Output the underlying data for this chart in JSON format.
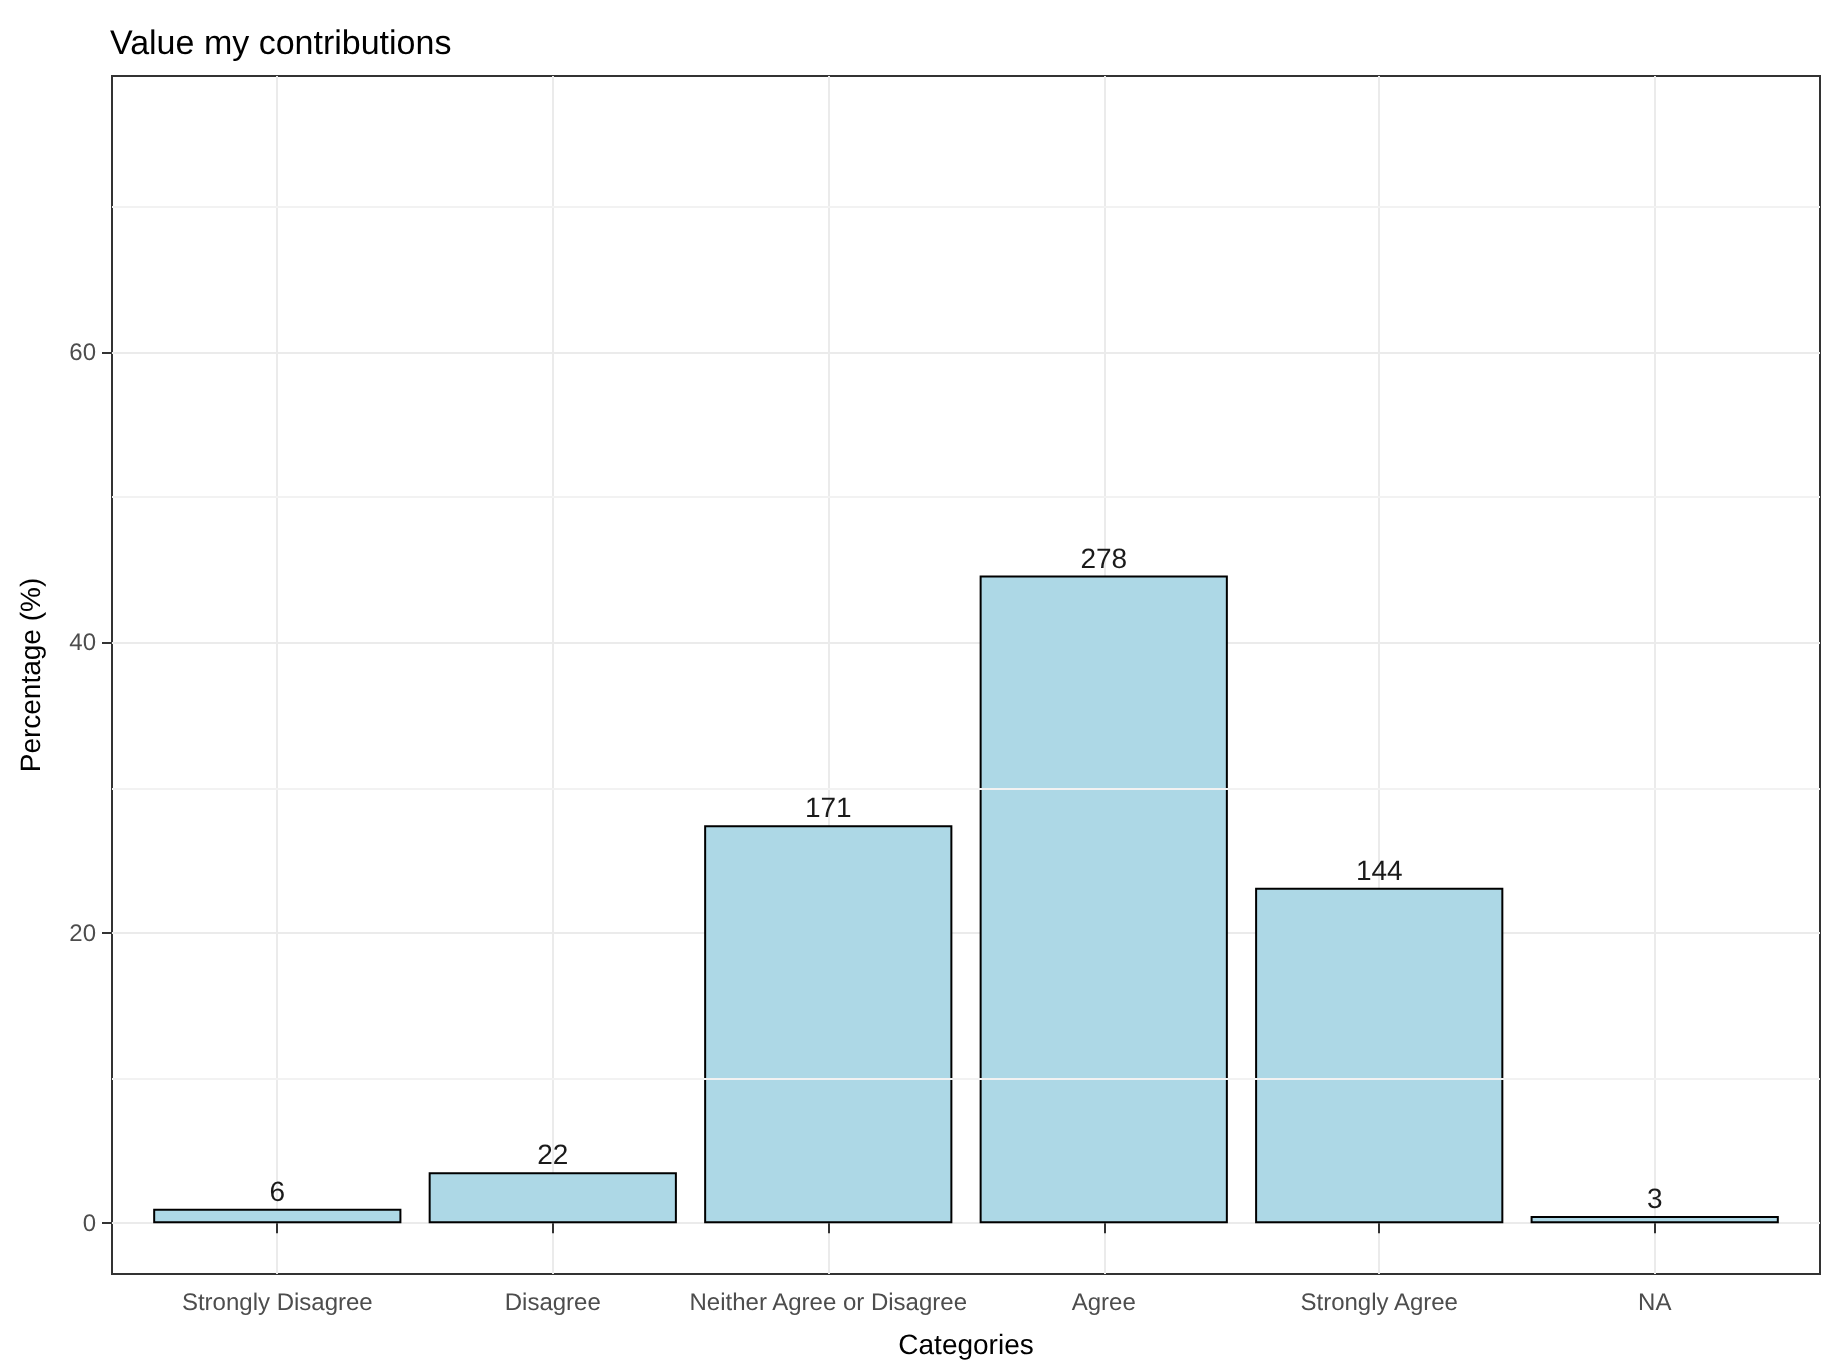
{
  "chart_data": {
    "type": "bar",
    "title": "Value my contributions",
    "xlabel": "Categories",
    "ylabel": "Percentage (%)",
    "categories": [
      "Strongly Disagree",
      "Disagree",
      "Neither Agree or Disagree",
      "Agree",
      "Strongly Agree",
      "NA"
    ],
    "values": [
      1.0,
      3.5,
      27.4,
      44.6,
      23.1,
      0.5
    ],
    "annotations": [
      {
        "text": "6",
        "x": "Strongly Disagree",
        "y": 1.0
      },
      {
        "text": "22",
        "x": "Disagree",
        "y": 3.5
      },
      {
        "text": "171",
        "x": "Neither Agree or Disagree",
        "y": 27.4
      },
      {
        "text": "278",
        "x": "Agree",
        "y": 44.6
      },
      {
        "text": "144",
        "x": "Strongly Agree",
        "y": 23.1
      },
      {
        "text": "3",
        "x": "NA",
        "y": 0.5
      }
    ],
    "color": "#add8e6",
    "ylim": [
      -3.5,
      79
    ],
    "yticks": [
      0,
      20,
      40,
      60
    ],
    "grid": true
  }
}
